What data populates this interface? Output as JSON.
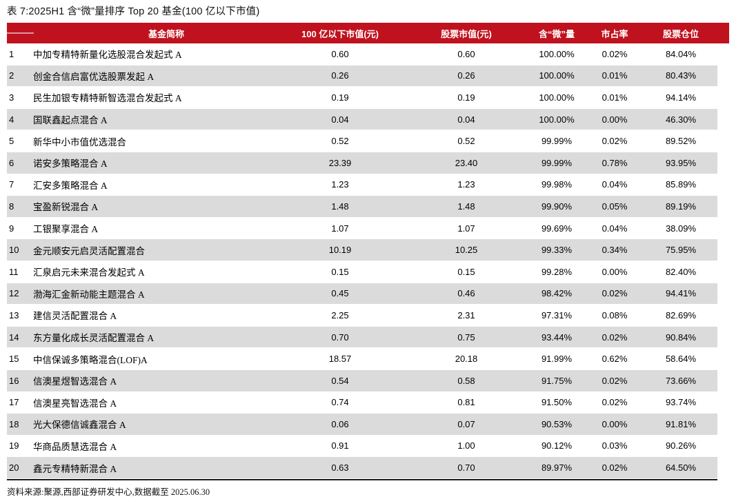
{
  "title": "表 7:2025H1 含“微”量排序 Top 20 基金(100 亿以下市值)",
  "colors": {
    "header_bg": "#C0121E",
    "header_text": "#FFFFFF",
    "stripe": "#DBDBDB",
    "dash": "#DE959C",
    "bottom_border": "#1B1B1B"
  },
  "table": {
    "columns": [
      "基金简称",
      "100 亿以下市值(元)",
      "股票市值(元)",
      "含“微”量",
      "市占率",
      "股票仓位"
    ],
    "rows": [
      {
        "rank": "1",
        "name": "中加专精特新量化选股混合发起式 A",
        "cap_below": "0.60",
        "stock_cap": "0.60",
        "micro": "100.00%",
        "share": "0.02%",
        "position": "84.04%"
      },
      {
        "rank": "2",
        "name": "创金合信启富优选股票发起 A",
        "cap_below": "0.26",
        "stock_cap": "0.26",
        "micro": "100.00%",
        "share": "0.01%",
        "position": "80.43%"
      },
      {
        "rank": "3",
        "name": "民生加银专精特新智选混合发起式 A",
        "cap_below": "0.19",
        "stock_cap": "0.19",
        "micro": "100.00%",
        "share": "0.01%",
        "position": "94.14%"
      },
      {
        "rank": "4",
        "name": "国联鑫起点混合 A",
        "cap_below": "0.04",
        "stock_cap": "0.04",
        "micro": "100.00%",
        "share": "0.00%",
        "position": "46.30%"
      },
      {
        "rank": "5",
        "name": "新华中小市值优选混合",
        "cap_below": "0.52",
        "stock_cap": "0.52",
        "micro": "99.99%",
        "share": "0.02%",
        "position": "89.52%"
      },
      {
        "rank": "6",
        "name": "诺安多策略混合 A",
        "cap_below": "23.39",
        "stock_cap": "23.40",
        "micro": "99.99%",
        "share": "0.78%",
        "position": "93.95%"
      },
      {
        "rank": "7",
        "name": "汇安多策略混合 A",
        "cap_below": "1.23",
        "stock_cap": "1.23",
        "micro": "99.98%",
        "share": "0.04%",
        "position": "85.89%"
      },
      {
        "rank": "8",
        "name": "宝盈新锐混合 A",
        "cap_below": "1.48",
        "stock_cap": "1.48",
        "micro": "99.90%",
        "share": "0.05%",
        "position": "89.19%"
      },
      {
        "rank": "9",
        "name": "工银聚享混合 A",
        "cap_below": "1.07",
        "stock_cap": "1.07",
        "micro": "99.69%",
        "share": "0.04%",
        "position": "38.09%"
      },
      {
        "rank": "10",
        "name": "金元顺安元启灵活配置混合",
        "cap_below": "10.19",
        "stock_cap": "10.25",
        "micro": "99.33%",
        "share": "0.34%",
        "position": "75.95%"
      },
      {
        "rank": "11",
        "name": "汇泉启元未来混合发起式 A",
        "cap_below": "0.15",
        "stock_cap": "0.15",
        "micro": "99.28%",
        "share": "0.00%",
        "position": "82.40%"
      },
      {
        "rank": "12",
        "name": "渤海汇金新动能主题混合 A",
        "cap_below": "0.45",
        "stock_cap": "0.46",
        "micro": "98.42%",
        "share": "0.02%",
        "position": "94.41%"
      },
      {
        "rank": "13",
        "name": "建信灵活配置混合 A",
        "cap_below": "2.25",
        "stock_cap": "2.31",
        "micro": "97.31%",
        "share": "0.08%",
        "position": "82.69%"
      },
      {
        "rank": "14",
        "name": "东方量化成长灵活配置混合 A",
        "cap_below": "0.70",
        "stock_cap": "0.75",
        "micro": "93.44%",
        "share": "0.02%",
        "position": "90.84%"
      },
      {
        "rank": "15",
        "name": "中信保诚多策略混合(LOF)A",
        "cap_below": "18.57",
        "stock_cap": "20.18",
        "micro": "91.99%",
        "share": "0.62%",
        "position": "58.64%"
      },
      {
        "rank": "16",
        "name": "信澳星煜智选混合 A",
        "cap_below": "0.54",
        "stock_cap": "0.58",
        "micro": "91.75%",
        "share": "0.02%",
        "position": "73.66%"
      },
      {
        "rank": "17",
        "name": "信澳星亮智选混合 A",
        "cap_below": "0.74",
        "stock_cap": "0.81",
        "micro": "91.50%",
        "share": "0.02%",
        "position": "93.74%"
      },
      {
        "rank": "18",
        "name": "光大保德信诚鑫混合 A",
        "cap_below": "0.06",
        "stock_cap": "0.07",
        "micro": "90.53%",
        "share": "0.00%",
        "position": "91.81%"
      },
      {
        "rank": "19",
        "name": "华商品质慧选混合 A",
        "cap_below": "0.91",
        "stock_cap": "1.00",
        "micro": "90.12%",
        "share": "0.03%",
        "position": "90.26%"
      },
      {
        "rank": "20",
        "name": "鑫元专精特新混合 A",
        "cap_below": "0.63",
        "stock_cap": "0.70",
        "micro": "89.97%",
        "share": "0.02%",
        "position": "64.50%"
      }
    ]
  },
  "footer": {
    "source": "资料来源:聚源,西部证券研发中心,数据截至 2025.06.30"
  }
}
